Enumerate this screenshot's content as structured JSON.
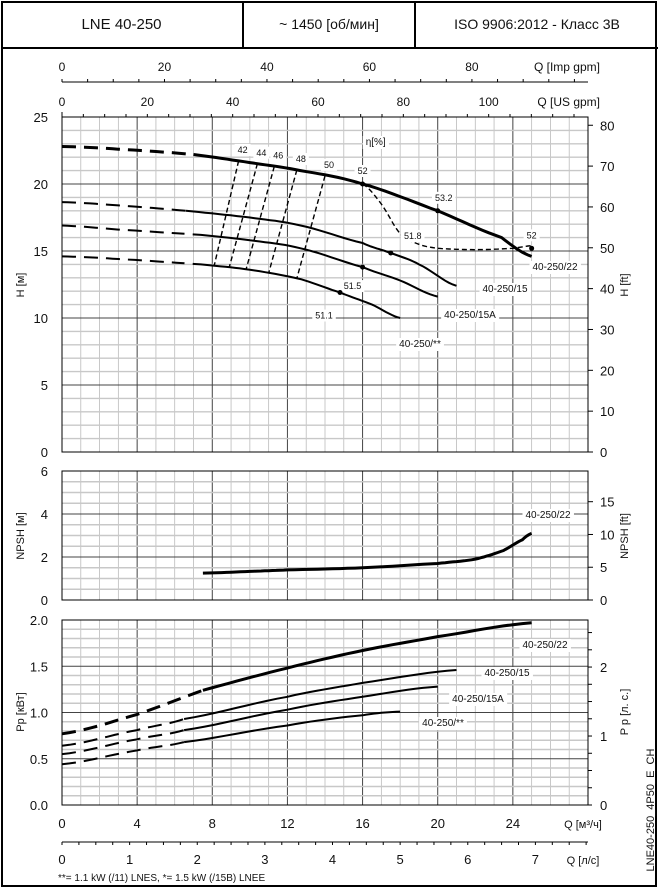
{
  "header": {
    "model": "LNE 40-250",
    "speed": "~ 1450 [об/мин]",
    "standard": "ISO 9906:2012 - Класс 3B"
  },
  "footnote": "**= 1.1 kW (/11) LNES, *= 1.5 kW (/15B) LNEE",
  "doc_code": "LNE40-250_4P50_E_CH",
  "colors": {
    "line": "#000000",
    "grid_major": "#555555",
    "grid_minor": "#c8c8c8"
  },
  "chart_data": [
    {
      "type": "line",
      "id": "head",
      "xlabel_top1": "Q [Imp gpm]",
      "xlabel_top2": "Q [US gpm]",
      "ylabel": "H [м]",
      "ylabel_right": "H [ft]",
      "eta_label": "η[%]",
      "xlim": [
        0,
        28
      ],
      "ylim": [
        0,
        25
      ],
      "yticks": [
        0,
        5,
        10,
        15,
        20,
        25
      ],
      "yticks_right": [
        0,
        10,
        20,
        30,
        40,
        50,
        60,
        70,
        80
      ],
      "imp_ticks": [
        0,
        20,
        40,
        60,
        80
      ],
      "us_ticks": [
        0,
        20,
        40,
        60,
        80,
        100
      ],
      "series": [
        {
          "name": "40-250/22",
          "dashed_until": 7,
          "q": [
            0,
            3,
            7,
            10,
            12.7,
            16,
            20,
            23.4,
            25
          ],
          "h": [
            22.8,
            22.6,
            22.2,
            21.6,
            21.0,
            20.0,
            18.0,
            16.0,
            14.6
          ]
        },
        {
          "name": "40-250/15",
          "dashed_until": 6.6,
          "q": [
            0,
            3,
            6.6,
            10,
            12.7,
            16,
            17.5,
            19,
            21
          ],
          "h": [
            18.65,
            18.4,
            18.0,
            17.5,
            16.9,
            15.6,
            14.85,
            14.0,
            12.4
          ]
        },
        {
          "name": "40-250/15A",
          "dashed_until": 6.6,
          "q": [
            0,
            3,
            7.4,
            10,
            12.7,
            16,
            18,
            20
          ],
          "h": [
            16.9,
            16.6,
            16.2,
            15.8,
            15.2,
            13.8,
            12.8,
            11.6
          ]
        },
        {
          "name": "40-250/**",
          "dashed_until": 6.6,
          "q": [
            0,
            3,
            7.4,
            10,
            12.7,
            14.8,
            16.5,
            18
          ],
          "h": [
            14.6,
            14.4,
            14.0,
            13.6,
            12.9,
            11.9,
            11.0,
            10.0
          ]
        }
      ],
      "efficiency_curve": {
        "q": [
          16,
          17,
          18,
          19,
          20,
          22,
          24,
          25
        ],
        "h": [
          20,
          18.5,
          16.3,
          15.5,
          15.2,
          15.1,
          15.2,
          15.4
        ]
      },
      "iso_efficiency": [
        {
          "label": "42",
          "q_top": 9.4,
          "q_bot": 8.1
        },
        {
          "label": "44",
          "q_top": 10.4,
          "q_bot": 8.9
        },
        {
          "label": "46",
          "q_top": 11.3,
          "q_bot": 9.8
        },
        {
          "label": "48",
          "q_top": 12.5,
          "q_bot": 11.0
        },
        {
          "label": "50",
          "q_top": 14.0,
          "q_bot": 12.5
        }
      ],
      "points": [
        {
          "label": "52",
          "q": 16,
          "h": 20
        },
        {
          "label": "53.2",
          "q": 20,
          "h": 18.0
        },
        {
          "label": "52",
          "q": 25,
          "h": 15.2
        },
        {
          "label": "51.8",
          "q": 17.5,
          "h": 14.85
        },
        {
          "label": "51.5",
          "q": 16,
          "h": 13.8
        },
        {
          "label": "51.1",
          "q": 14.8,
          "h": 11.9
        }
      ]
    },
    {
      "type": "line",
      "id": "npsh",
      "ylabel": "NPSH [м]",
      "ylabel_right": "NPSH [ft]",
      "xlim": [
        0,
        28
      ],
      "ylim": [
        0,
        6
      ],
      "yticks": [
        0,
        2,
        4,
        6
      ],
      "yticks_right": [
        0,
        5,
        10,
        15
      ],
      "series": [
        {
          "name": "40-250/22",
          "q": [
            7.5,
            10,
            12,
            16,
            20,
            22,
            23.5,
            24.5,
            25
          ],
          "npsh": [
            1.25,
            1.33,
            1.4,
            1.5,
            1.7,
            1.9,
            2.3,
            2.8,
            3.1
          ]
        }
      ]
    },
    {
      "type": "line",
      "id": "power",
      "ylabel": "Pp [кВт]",
      "ylabel_right": "P p [л. с.]",
      "xlabel": "Q [м³/ч]",
      "xlabel2": "Q [л/с]",
      "xlim": [
        0,
        28
      ],
      "ylim": [
        0,
        2
      ],
      "yticks": [
        "0.0",
        "0.5",
        "1.0",
        "1.5",
        "2.0"
      ],
      "yticks_right": [
        0,
        1,
        2
      ],
      "xticks": [
        0,
        4,
        8,
        12,
        16,
        20,
        24
      ],
      "ls_ticks": [
        0,
        1,
        2,
        3,
        4,
        5,
        6,
        7
      ],
      "series": [
        {
          "name": "40-250/22",
          "dashed_until": 7.5,
          "q": [
            0,
            4,
            7.5,
            12,
            16,
            20,
            25
          ],
          "p": [
            0.77,
            0.98,
            1.24,
            1.48,
            1.67,
            1.82,
            1.97
          ]
        },
        {
          "name": "40-250/15",
          "dashed_until": 6.5,
          "q": [
            0,
            4,
            6.5,
            12,
            16,
            21
          ],
          "p": [
            0.64,
            0.81,
            0.93,
            1.17,
            1.32,
            1.46
          ]
        },
        {
          "name": "40-250/15A",
          "dashed_until": 6.5,
          "q": [
            0,
            4,
            6.5,
            12,
            16,
            20
          ],
          "p": [
            0.55,
            0.71,
            0.81,
            1.03,
            1.17,
            1.28
          ]
        },
        {
          "name": "40-250/**",
          "dashed_until": 6.5,
          "q": [
            0,
            4,
            6.5,
            12,
            16,
            18
          ],
          "p": [
            0.44,
            0.59,
            0.68,
            0.86,
            0.97,
            1.01
          ]
        }
      ]
    }
  ]
}
